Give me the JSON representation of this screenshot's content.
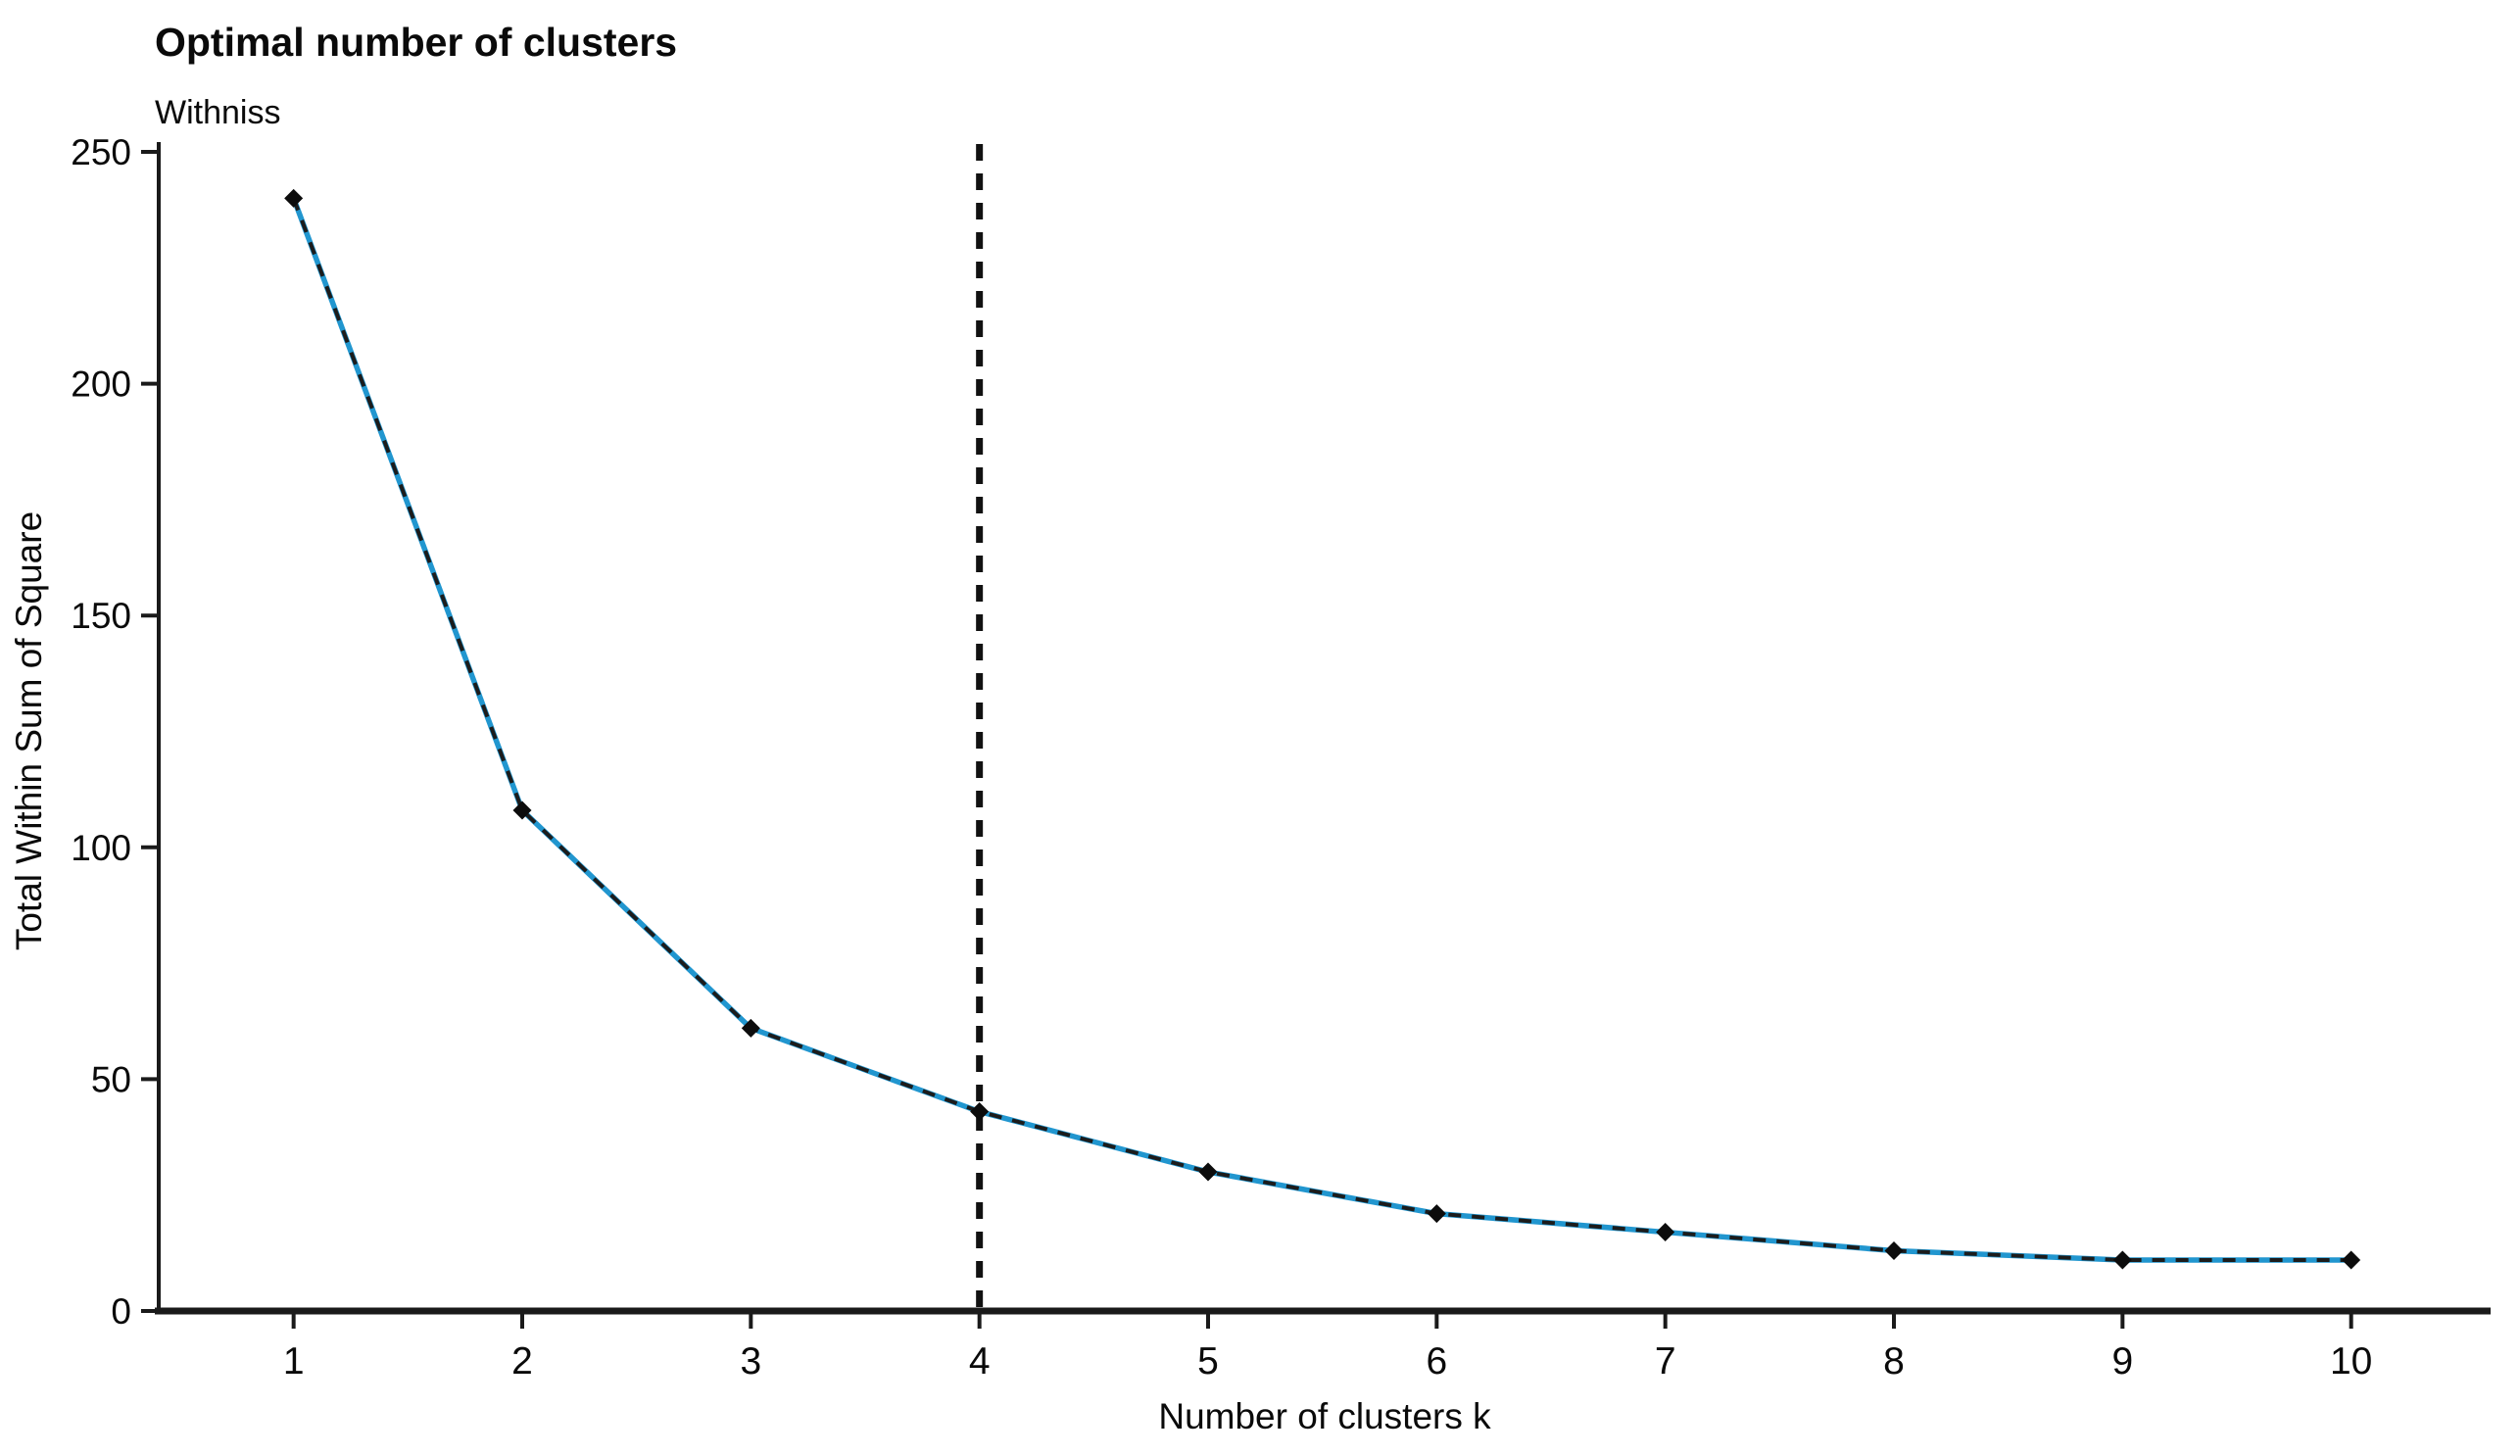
{
  "page": {
    "background": "#ffffff"
  },
  "chart_data": {
    "type": "line",
    "title": "Optimal number of clusters",
    "subtitle": "Withniss",
    "xlabel": "Number of clusters k",
    "ylabel": "Total Within Sum of Square",
    "x": [
      1,
      2,
      3,
      4,
      5,
      6,
      7,
      8,
      9,
      10
    ],
    "values": [
      240,
      108,
      61,
      43,
      30,
      21,
      17,
      13,
      11,
      11
    ],
    "xtick_labels": [
      "1",
      "2",
      "3",
      "4",
      "5",
      "6",
      "7",
      "8",
      "9",
      "10"
    ],
    "ytick_labels": [
      "0",
      "50",
      "100",
      "150",
      "200",
      "250"
    ],
    "yticks": [
      0,
      50,
      100,
      150,
      200,
      250
    ],
    "ylim": [
      0,
      250
    ],
    "xlim": [
      0.41,
      10.61
    ],
    "elbow_at_x": 4,
    "elbow_line_style": "dashed",
    "marker": "diamond",
    "grid": false,
    "legend": "none"
  },
  "colors": {
    "line_blue": "#2196cf",
    "line_dash_overlay": "#1c1c1c",
    "marker_black": "#0c0c0c",
    "axis": "#1a1a1a",
    "elbow_line": "#111111",
    "text": "#0a0a0a",
    "background": "#ffffff"
  }
}
